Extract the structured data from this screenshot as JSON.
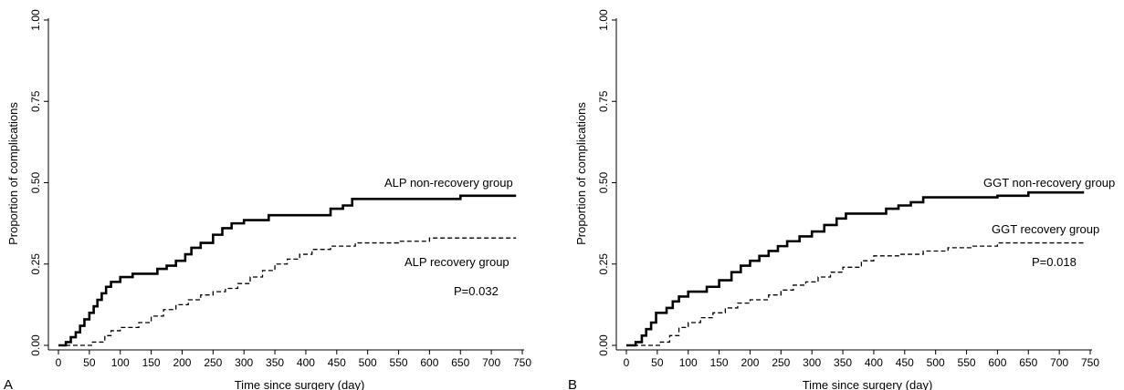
{
  "chart_data": [
    {
      "type": "line",
      "panel_label": "A",
      "xlabel": "Time since surgery (day)",
      "ylabel": "Proportion of complications",
      "xlim": [
        0,
        750
      ],
      "ylim": [
        0,
        1
      ],
      "xticks": [
        "0",
        "50",
        "100",
        "150",
        "200",
        "250",
        "300",
        "350",
        "400",
        "450",
        "500",
        "550",
        "600",
        "650",
        "700",
        "750"
      ],
      "yticks": [
        "0.00",
        "0.25",
        "0.50",
        "0.75",
        "1.00"
      ],
      "annotations": [
        "ALP non-recovery group",
        "ALP recovery group",
        "P=0.032"
      ],
      "series": [
        {
          "name": "ALP non-recovery group",
          "style": "solid",
          "step": true,
          "x": [
            0,
            12,
            20,
            28,
            35,
            42,
            50,
            57,
            63,
            70,
            77,
            85,
            100,
            120,
            160,
            175,
            190,
            205,
            215,
            230,
            250,
            265,
            280,
            300,
            340,
            440,
            460,
            475,
            650,
            740
          ],
          "y": [
            0,
            0.01,
            0.025,
            0.04,
            0.06,
            0.08,
            0.1,
            0.12,
            0.14,
            0.16,
            0.18,
            0.195,
            0.21,
            0.22,
            0.235,
            0.245,
            0.26,
            0.28,
            0.3,
            0.315,
            0.34,
            0.36,
            0.375,
            0.385,
            0.4,
            0.42,
            0.43,
            0.45,
            0.46,
            0.46
          ]
        },
        {
          "name": "ALP recovery group",
          "style": "dashed",
          "step": true,
          "x": [
            0,
            55,
            75,
            85,
            100,
            130,
            150,
            170,
            190,
            210,
            230,
            250,
            270,
            290,
            310,
            330,
            350,
            370,
            390,
            410,
            440,
            480,
            550,
            600,
            740
          ],
          "y": [
            0,
            0.01,
            0.03,
            0.045,
            0.055,
            0.07,
            0.09,
            0.11,
            0.125,
            0.14,
            0.155,
            0.165,
            0.175,
            0.19,
            0.21,
            0.23,
            0.25,
            0.265,
            0.28,
            0.295,
            0.305,
            0.315,
            0.32,
            0.33,
            0.33
          ]
        }
      ]
    },
    {
      "type": "line",
      "panel_label": "B",
      "xlabel": "Time since surgery (day)",
      "ylabel": "Proportion of complications",
      "xlim": [
        0,
        750
      ],
      "ylim": [
        0,
        1
      ],
      "xticks": [
        "0",
        "50",
        "100",
        "150",
        "200",
        "250",
        "300",
        "350",
        "400",
        "450",
        "500",
        "550",
        "600",
        "650",
        "700",
        "750"
      ],
      "yticks": [
        "0.00",
        "0.25",
        "0.50",
        "0.75",
        "1.00"
      ],
      "annotations": [
        "GGT non-recovery group",
        "GGT recovery group",
        "P=0.018"
      ],
      "series": [
        {
          "name": "GGT non-recovery group",
          "style": "solid",
          "step": true,
          "x": [
            0,
            15,
            25,
            32,
            40,
            48,
            65,
            75,
            85,
            100,
            130,
            150,
            170,
            185,
            200,
            215,
            230,
            245,
            260,
            280,
            300,
            320,
            340,
            355,
            420,
            440,
            460,
            480,
            600,
            650,
            740
          ],
          "y": [
            0,
            0.01,
            0.03,
            0.05,
            0.07,
            0.1,
            0.115,
            0.135,
            0.15,
            0.165,
            0.18,
            0.2,
            0.225,
            0.245,
            0.26,
            0.275,
            0.29,
            0.305,
            0.32,
            0.335,
            0.35,
            0.37,
            0.39,
            0.405,
            0.42,
            0.43,
            0.44,
            0.455,
            0.46,
            0.47,
            0.47
          ]
        },
        {
          "name": "GGT recovery group",
          "style": "dashed",
          "step": true,
          "x": [
            0,
            55,
            70,
            85,
            100,
            120,
            140,
            160,
            180,
            200,
            230,
            250,
            270,
            290,
            310,
            330,
            350,
            380,
            400,
            440,
            480,
            520,
            560,
            600,
            740
          ],
          "y": [
            0,
            0.01,
            0.03,
            0.055,
            0.07,
            0.085,
            0.1,
            0.115,
            0.13,
            0.14,
            0.155,
            0.17,
            0.185,
            0.195,
            0.21,
            0.225,
            0.24,
            0.26,
            0.275,
            0.28,
            0.29,
            0.3,
            0.305,
            0.315,
            0.315
          ]
        }
      ]
    }
  ]
}
